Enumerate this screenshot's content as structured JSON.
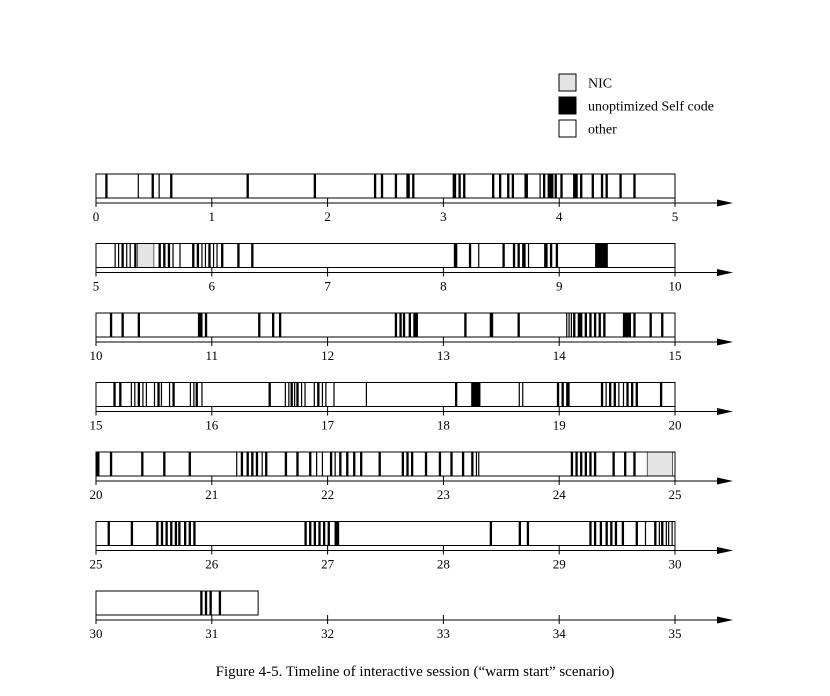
{
  "caption": "Figure 4-5.  Timeline of interactive session (“warm start” scenario)",
  "chart_data": {
    "type": "timeline",
    "title": "",
    "xlabel": "",
    "ylabel": "",
    "rows": [
      {
        "start": 0,
        "end": 5,
        "ticks": [
          "0",
          "1",
          "2",
          "3",
          "4",
          "5"
        ],
        "end_value": 5
      },
      {
        "start": 5,
        "end": 10,
        "ticks": [
          "5",
          "6",
          "7",
          "8",
          "9",
          "10"
        ],
        "end_value": 10
      },
      {
        "start": 10,
        "end": 15,
        "ticks": [
          "10",
          "11",
          "12",
          "13",
          "14",
          "15"
        ],
        "end_value": 15
      },
      {
        "start": 15,
        "end": 20,
        "ticks": [
          "15",
          "16",
          "17",
          "18",
          "19",
          "20"
        ],
        "end_value": 20
      },
      {
        "start": 20,
        "end": 25,
        "ticks": [
          "20",
          "21",
          "22",
          "23",
          "24",
          "25"
        ],
        "end_value": 25
      },
      {
        "start": 25,
        "end": 30,
        "ticks": [
          "25",
          "26",
          "27",
          "28",
          "29",
          "30"
        ],
        "end_value": 30
      },
      {
        "start": 30,
        "end": 35,
        "ticks": [
          "30",
          "31",
          "32",
          "33",
          "34",
          "35"
        ],
        "end_value": 31.4
      }
    ],
    "legend": {
      "placement": "top-right",
      "entries": [
        {
          "label": "NIC",
          "color": "#e4e4e4"
        },
        {
          "label": "unoptimized Self code",
          "color": "#000000"
        },
        {
          "label": "other",
          "color": "#ffffff"
        }
      ]
    },
    "series": [
      {
        "category": "unoptimized Self code",
        "color": "#000000",
        "intervals": [
          [
            0.08,
            0.1
          ],
          [
            0.36,
            0.37
          ],
          [
            0.48,
            0.5
          ],
          [
            0.54,
            0.55
          ],
          [
            0.64,
            0.66
          ],
          [
            1.3,
            1.32
          ],
          [
            1.88,
            1.9
          ],
          [
            2.4,
            2.42
          ],
          [
            2.46,
            2.48
          ],
          [
            2.58,
            2.6
          ],
          [
            2.68,
            2.71
          ],
          [
            2.73,
            2.75
          ],
          [
            3.08,
            3.11
          ],
          [
            3.13,
            3.15
          ],
          [
            3.17,
            3.19
          ],
          [
            3.42,
            3.44
          ],
          [
            3.48,
            3.5
          ],
          [
            3.55,
            3.57
          ],
          [
            3.59,
            3.61
          ],
          [
            3.7,
            3.73
          ],
          [
            3.83,
            3.84
          ],
          [
            3.86,
            3.88
          ],
          [
            3.9,
            3.95
          ],
          [
            3.96,
            3.98
          ],
          [
            4.01,
            4.03
          ],
          [
            4.12,
            4.16
          ],
          [
            4.18,
            4.2
          ],
          [
            4.28,
            4.3
          ],
          [
            4.36,
            4.38
          ],
          [
            4.4,
            4.42
          ],
          [
            4.52,
            4.54
          ],
          [
            4.64,
            4.66
          ],
          [
            5.16,
            5.17
          ],
          [
            5.19,
            5.2
          ],
          [
            5.22,
            5.24
          ],
          [
            5.26,
            5.27
          ],
          [
            5.29,
            5.3
          ],
          [
            5.33,
            5.35
          ],
          [
            5.54,
            5.56
          ],
          [
            5.58,
            5.6
          ],
          [
            5.62,
            5.64
          ],
          [
            5.66,
            5.67
          ],
          [
            5.72,
            5.73
          ],
          [
            5.83,
            5.85
          ],
          [
            5.87,
            5.89
          ],
          [
            5.91,
            5.92
          ],
          [
            5.94,
            5.95
          ],
          [
            5.97,
            5.99
          ],
          [
            6.01,
            6.02
          ],
          [
            6.04,
            6.05
          ],
          [
            6.08,
            6.1
          ],
          [
            6.22,
            6.24
          ],
          [
            6.34,
            6.36
          ],
          [
            8.09,
            8.12
          ],
          [
            8.22,
            8.24
          ],
          [
            8.3,
            8.31
          ],
          [
            8.51,
            8.53
          ],
          [
            8.6,
            8.62
          ],
          [
            8.64,
            8.66
          ],
          [
            8.68,
            8.71
          ],
          [
            8.73,
            8.74
          ],
          [
            8.87,
            8.9
          ],
          [
            8.92,
            8.94
          ],
          [
            8.97,
            8.99
          ],
          [
            9.31,
            9.42
          ],
          [
            10.12,
            10.14
          ],
          [
            10.22,
            10.24
          ],
          [
            10.36,
            10.38
          ],
          [
            10.88,
            10.92
          ],
          [
            10.94,
            10.96
          ],
          [
            11.4,
            11.42
          ],
          [
            11.52,
            11.54
          ],
          [
            11.58,
            11.6
          ],
          [
            12.58,
            12.6
          ],
          [
            12.62,
            12.64
          ],
          [
            12.65,
            12.67
          ],
          [
            12.7,
            12.72
          ],
          [
            12.74,
            12.78
          ],
          [
            13.18,
            13.2
          ],
          [
            13.4,
            13.43
          ],
          [
            13.64,
            13.66
          ],
          [
            14.06,
            14.07
          ],
          [
            14.08,
            14.09
          ],
          [
            14.1,
            14.11
          ],
          [
            14.12,
            14.14
          ],
          [
            14.16,
            14.2
          ],
          [
            14.22,
            14.24
          ],
          [
            14.26,
            14.28
          ],
          [
            14.3,
            14.32
          ],
          [
            14.34,
            14.36
          ],
          [
            14.38,
            14.4
          ],
          [
            14.55,
            14.62
          ],
          [
            14.64,
            14.66
          ],
          [
            14.78,
            14.8
          ],
          [
            14.88,
            14.9
          ],
          [
            15.15,
            15.17
          ],
          [
            15.2,
            15.22
          ],
          [
            15.3,
            15.31
          ],
          [
            15.33,
            15.34
          ],
          [
            15.36,
            15.38
          ],
          [
            15.4,
            15.41
          ],
          [
            15.43,
            15.44
          ],
          [
            15.5,
            15.51
          ],
          [
            15.53,
            15.55
          ],
          [
            15.56,
            15.57
          ],
          [
            15.63,
            15.64
          ],
          [
            15.66,
            15.68
          ],
          [
            15.81,
            15.82
          ],
          [
            15.84,
            15.85
          ],
          [
            15.86,
            15.88
          ],
          [
            15.91,
            15.92
          ],
          [
            16.49,
            16.51
          ],
          [
            16.63,
            16.64
          ],
          [
            16.66,
            16.67
          ],
          [
            16.68,
            16.7
          ],
          [
            16.71,
            16.72
          ],
          [
            16.73,
            16.75
          ],
          [
            16.77,
            16.78
          ],
          [
            16.8,
            16.81
          ],
          [
            16.88,
            16.89
          ],
          [
            16.91,
            16.93
          ],
          [
            16.95,
            16.96
          ],
          [
            16.98,
            16.99
          ],
          [
            17.05,
            17.06
          ],
          [
            17.33,
            17.34
          ],
          [
            18.1,
            18.12
          ],
          [
            18.24,
            18.32
          ],
          [
            18.65,
            18.66
          ],
          [
            18.68,
            18.69
          ],
          [
            18.98,
            19.0
          ],
          [
            19.02,
            19.04
          ],
          [
            19.06,
            19.09
          ],
          [
            19.36,
            19.38
          ],
          [
            19.4,
            19.41
          ],
          [
            19.43,
            19.45
          ],
          [
            19.47,
            19.49
          ],
          [
            19.51,
            19.52
          ],
          [
            19.55,
            19.56
          ],
          [
            19.58,
            19.6
          ],
          [
            19.62,
            19.64
          ],
          [
            19.66,
            19.68
          ],
          [
            19.87,
            19.89
          ],
          [
            20.0,
            20.03
          ],
          [
            20.12,
            20.14
          ],
          [
            20.39,
            20.41
          ],
          [
            20.58,
            20.6
          ],
          [
            20.8,
            20.82
          ],
          [
            21.21,
            21.22
          ],
          [
            21.25,
            21.27
          ],
          [
            21.3,
            21.32
          ],
          [
            21.34,
            21.36
          ],
          [
            21.38,
            21.4
          ],
          [
            21.43,
            21.44
          ],
          [
            21.46,
            21.48
          ],
          [
            21.63,
            21.65
          ],
          [
            21.73,
            21.75
          ],
          [
            21.84,
            21.86
          ],
          [
            21.9,
            21.91
          ],
          [
            21.95,
            21.96
          ],
          [
            22.02,
            22.04
          ],
          [
            22.06,
            22.07
          ],
          [
            22.1,
            22.12
          ],
          [
            22.16,
            22.18
          ],
          [
            22.22,
            22.24
          ],
          [
            22.28,
            22.3
          ],
          [
            22.44,
            22.46
          ],
          [
            22.64,
            22.66
          ],
          [
            22.68,
            22.7
          ],
          [
            22.72,
            22.74
          ],
          [
            22.84,
            22.86
          ],
          [
            22.96,
            22.98
          ],
          [
            23.06,
            23.08
          ],
          [
            23.16,
            23.18
          ],
          [
            23.24,
            23.26
          ],
          [
            23.28,
            23.29
          ],
          [
            23.3,
            23.31
          ],
          [
            24.1,
            24.12
          ],
          [
            24.14,
            24.16
          ],
          [
            24.18,
            24.2
          ],
          [
            24.22,
            24.24
          ],
          [
            24.26,
            24.28
          ],
          [
            24.3,
            24.32
          ],
          [
            24.46,
            24.48
          ],
          [
            24.56,
            24.58
          ],
          [
            24.64,
            24.66
          ],
          [
            25.1,
            25.12
          ],
          [
            25.3,
            25.32
          ],
          [
            25.52,
            25.54
          ],
          [
            25.56,
            25.58
          ],
          [
            25.6,
            25.62
          ],
          [
            25.64,
            25.66
          ],
          [
            25.68,
            25.7
          ],
          [
            25.71,
            25.73
          ],
          [
            25.76,
            25.78
          ],
          [
            25.8,
            25.82
          ],
          [
            25.84,
            25.86
          ],
          [
            26.8,
            26.82
          ],
          [
            26.84,
            26.86
          ],
          [
            26.88,
            26.9
          ],
          [
            26.92,
            26.94
          ],
          [
            26.96,
            26.98
          ],
          [
            27.0,
            27.02
          ],
          [
            27.06,
            27.1
          ],
          [
            28.4,
            28.42
          ],
          [
            28.65,
            28.67
          ],
          [
            28.72,
            28.74
          ],
          [
            29.26,
            29.28
          ],
          [
            29.3,
            29.32
          ],
          [
            29.35,
            29.37
          ],
          [
            29.4,
            29.42
          ],
          [
            29.44,
            29.46
          ],
          [
            29.48,
            29.5
          ],
          [
            29.54,
            29.56
          ],
          [
            29.66,
            29.68
          ],
          [
            29.74,
            29.75
          ],
          [
            29.82,
            29.84
          ],
          [
            29.86,
            29.87
          ],
          [
            29.88,
            29.9
          ],
          [
            29.92,
            29.93
          ],
          [
            29.94,
            29.95
          ],
          [
            29.97,
            29.98
          ],
          [
            30.9,
            30.92
          ],
          [
            30.94,
            30.96
          ],
          [
            30.98,
            31.0
          ],
          [
            31.06,
            31.08
          ]
        ]
      },
      {
        "category": "NIC",
        "color": "#e4e4e4",
        "intervals": [
          [
            5.36,
            5.5
          ],
          [
            24.76,
            24.98
          ]
        ]
      }
    ]
  }
}
